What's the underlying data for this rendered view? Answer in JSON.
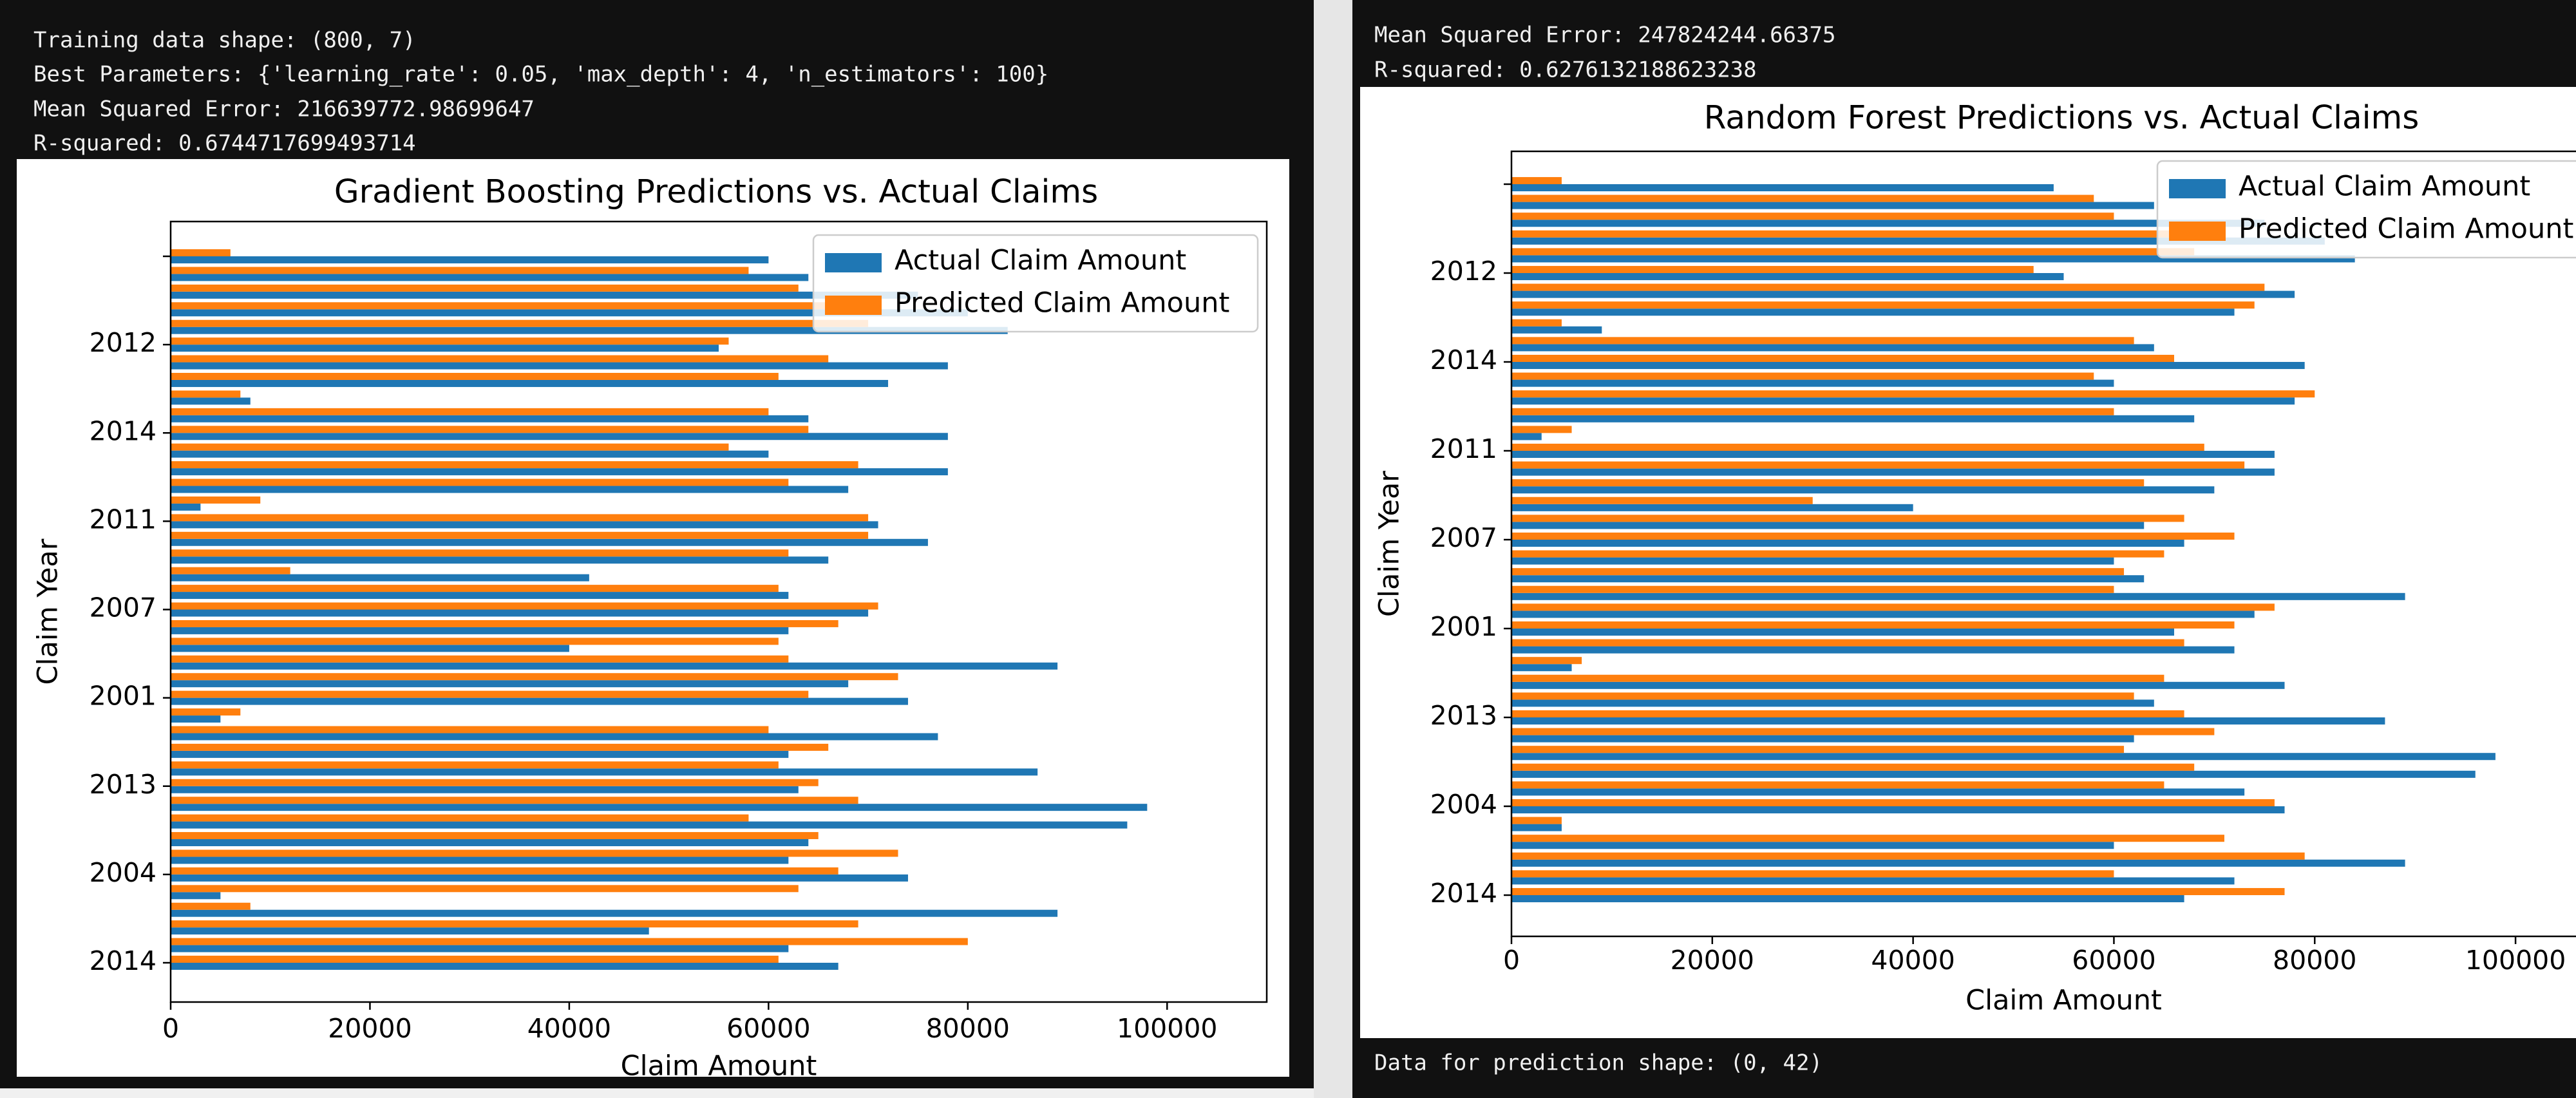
{
  "left_output": {
    "lines": [
      "Training data shape: (800, 7)",
      "Best Parameters: {'learning_rate': 0.05, 'max_depth': 4, 'n_estimators': 100}",
      "Mean Squared Error: 216639772.98699647",
      "R-squared: 0.6744717699493714"
    ]
  },
  "right_output": {
    "lines": [
      "Mean Squared Error: 247824244.66375",
      "R-squared: 0.6276132188623238"
    ],
    "footer": "Data for prediction shape: (0, 42)"
  },
  "chart_data": [
    {
      "type": "barh",
      "title": "Gradient Boosting Predictions vs. Actual Claims",
      "x_label": "Claim Amount",
      "y_label": "Claim Year",
      "categories": [
        "2014",
        null,
        null,
        null,
        null,
        "2004",
        null,
        null,
        null,
        null,
        "2013",
        null,
        null,
        null,
        null,
        "2001",
        null,
        null,
        null,
        null,
        "2007",
        null,
        null,
        null,
        null,
        "2011",
        null,
        null,
        null,
        null,
        "2014",
        null,
        null,
        null,
        null,
        "2012",
        null,
        null,
        null,
        null,
        null
      ],
      "series": [
        {
          "name": "Actual Claim Amount",
          "color": "#1f77b4",
          "values": [
            67000,
            62000,
            48000,
            89000,
            5000,
            74000,
            62000,
            64000,
            96000,
            98000,
            63000,
            87000,
            62000,
            77000,
            5000,
            74000,
            68000,
            89000,
            40000,
            62000,
            70000,
            62000,
            42000,
            66000,
            76000,
            71000,
            3000,
            68000,
            78000,
            60000,
            78000,
            64000,
            8000,
            72000,
            78000,
            55000,
            84000,
            80000,
            75000,
            64000,
            60000
          ]
        },
        {
          "name": "Predicted Claim Amount",
          "color": "#ff7f0e",
          "values": [
            61000,
            80000,
            69000,
            8000,
            63000,
            67000,
            73000,
            65000,
            58000,
            69000,
            65000,
            61000,
            66000,
            60000,
            7000,
            64000,
            73000,
            62000,
            61000,
            67000,
            71000,
            61000,
            12000,
            62000,
            70000,
            70000,
            9000,
            62000,
            69000,
            56000,
            64000,
            60000,
            7000,
            61000,
            66000,
            56000,
            70000,
            66000,
            63000,
            58000,
            6000
          ]
        }
      ],
      "xlim": [
        0,
        110000
      ],
      "xticks": [
        0,
        20000,
        40000,
        60000,
        80000,
        100000
      ],
      "legend": "upper right"
    },
    {
      "type": "barh",
      "title": "Random Forest Predictions vs. Actual Claims",
      "x_label": "Claim Amount",
      "y_label": "Claim Year",
      "categories": [
        "2014",
        null,
        null,
        null,
        null,
        "2004",
        null,
        null,
        null,
        null,
        "2013",
        null,
        null,
        null,
        null,
        "2001",
        null,
        null,
        null,
        null,
        "2007",
        null,
        null,
        null,
        null,
        "2011",
        null,
        null,
        null,
        null,
        "2014",
        null,
        null,
        null,
        null,
        "2012",
        null,
        null,
        null,
        null,
        null
      ],
      "series": [
        {
          "name": "Actual Claim Amount",
          "color": "#1f77b4",
          "values": [
            67000,
            72000,
            89000,
            60000,
            5000,
            77000,
            73000,
            96000,
            98000,
            62000,
            87000,
            64000,
            77000,
            6000,
            72000,
            66000,
            74000,
            89000,
            63000,
            60000,
            67000,
            63000,
            40000,
            70000,
            76000,
            76000,
            3000,
            68000,
            78000,
            60000,
            79000,
            64000,
            9000,
            72000,
            78000,
            55000,
            84000,
            81000,
            75000,
            64000,
            54000
          ]
        },
        {
          "name": "Predicted Claim Amount",
          "color": "#ff7f0e",
          "values": [
            77000,
            60000,
            79000,
            71000,
            5000,
            76000,
            65000,
            68000,
            61000,
            70000,
            67000,
            62000,
            65000,
            7000,
            67000,
            72000,
            76000,
            60000,
            61000,
            65000,
            72000,
            67000,
            30000,
            63000,
            73000,
            69000,
            6000,
            60000,
            80000,
            58000,
            66000,
            62000,
            5000,
            74000,
            75000,
            52000,
            68000,
            67000,
            60000,
            58000,
            5000
          ]
        }
      ],
      "xlim": [
        0,
        110000
      ],
      "xticks": [
        0,
        20000,
        40000,
        60000,
        80000,
        100000
      ],
      "legend": "upper right"
    }
  ]
}
